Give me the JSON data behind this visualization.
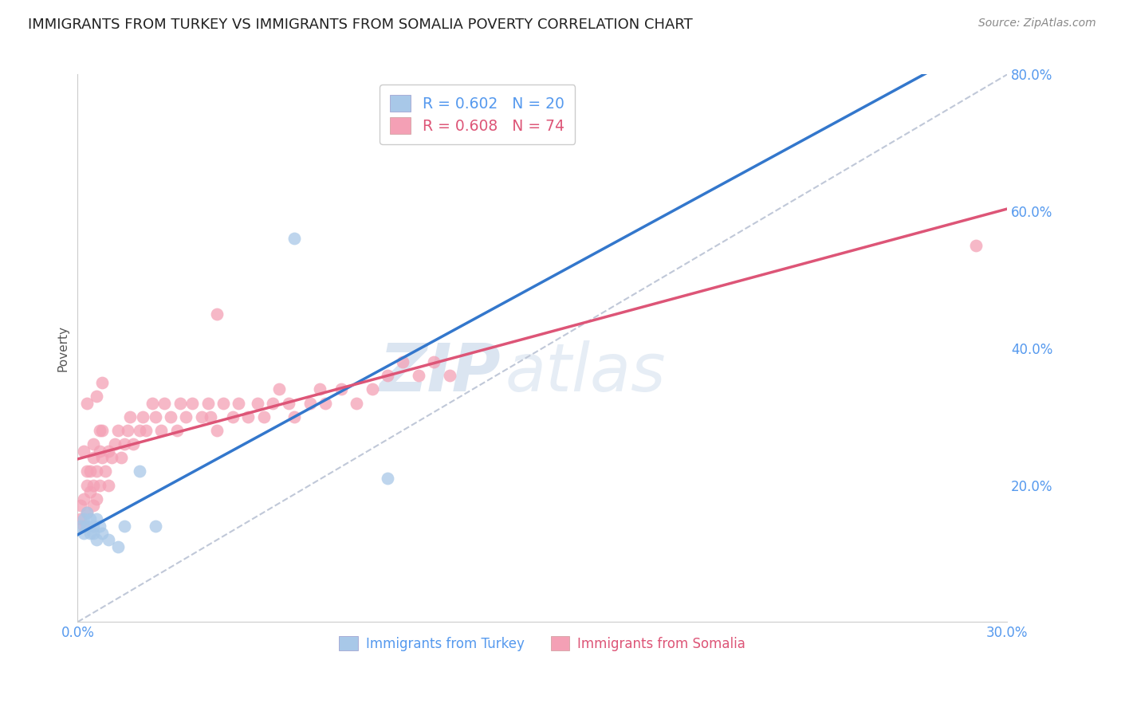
{
  "title": "IMMIGRANTS FROM TURKEY VS IMMIGRANTS FROM SOMALIA POVERTY CORRELATION CHART",
  "source": "Source: ZipAtlas.com",
  "ylabel": "Poverty",
  "watermark_zip": "ZIP",
  "watermark_atlas": "atlas",
  "turkey_color": "#a8c8e8",
  "turkey_edge": "#a8c8e8",
  "somalia_color": "#f4a0b5",
  "somalia_edge": "#f4a0b5",
  "turkey_line_color": "#3377cc",
  "somalia_line_color": "#dd5577",
  "diag_color": "#c0c8d8",
  "axis_color": "#5599ee",
  "title_color": "#222222",
  "source_color": "#888888",
  "ylabel_color": "#555555",
  "legend_r_turkey": "R = 0.602",
  "legend_n_turkey": "N = 20",
  "legend_r_somalia": "R = 0.608",
  "legend_n_somalia": "N = 74",
  "turkey_legend": "Immigrants from Turkey",
  "somalia_legend": "Immigrants from Somalia",
  "xlim": [
    0.0,
    0.3
  ],
  "ylim": [
    0.0,
    0.8
  ],
  "xtick_values": [
    0.0,
    0.05,
    0.1,
    0.15,
    0.2,
    0.25,
    0.3
  ],
  "xtick_labels": [
    "0.0%",
    "",
    "",
    "",
    "",
    "",
    "30.0%"
  ],
  "ytick_values": [
    0.2,
    0.4,
    0.6,
    0.8
  ],
  "ytick_labels": [
    "20.0%",
    "40.0%",
    "60.0%",
    "80.0%"
  ],
  "turkey_x": [
    0.001,
    0.002,
    0.002,
    0.003,
    0.003,
    0.004,
    0.004,
    0.005,
    0.005,
    0.006,
    0.006,
    0.007,
    0.008,
    0.01,
    0.013,
    0.015,
    0.02,
    0.025,
    0.07,
    0.1
  ],
  "turkey_y": [
    0.14,
    0.15,
    0.13,
    0.14,
    0.16,
    0.15,
    0.13,
    0.14,
    0.13,
    0.15,
    0.12,
    0.14,
    0.13,
    0.12,
    0.11,
    0.14,
    0.22,
    0.14,
    0.56,
    0.21
  ],
  "somalia_x": [
    0.001,
    0.001,
    0.002,
    0.002,
    0.003,
    0.003,
    0.003,
    0.004,
    0.004,
    0.005,
    0.005,
    0.005,
    0.006,
    0.006,
    0.007,
    0.007,
    0.008,
    0.008,
    0.009,
    0.01,
    0.01,
    0.011,
    0.012,
    0.013,
    0.014,
    0.015,
    0.016,
    0.017,
    0.018,
    0.02,
    0.021,
    0.022,
    0.024,
    0.025,
    0.027,
    0.028,
    0.03,
    0.032,
    0.033,
    0.035,
    0.037,
    0.04,
    0.042,
    0.043,
    0.045,
    0.047,
    0.05,
    0.052,
    0.055,
    0.058,
    0.06,
    0.063,
    0.065,
    0.068,
    0.07,
    0.075,
    0.078,
    0.08,
    0.085,
    0.09,
    0.095,
    0.1,
    0.105,
    0.11,
    0.115,
    0.12,
    0.002,
    0.003,
    0.005,
    0.006,
    0.007,
    0.008,
    0.29,
    0.045
  ],
  "somalia_y": [
    0.15,
    0.17,
    0.14,
    0.18,
    0.16,
    0.2,
    0.22,
    0.19,
    0.22,
    0.17,
    0.2,
    0.24,
    0.18,
    0.22,
    0.25,
    0.2,
    0.24,
    0.28,
    0.22,
    0.2,
    0.25,
    0.24,
    0.26,
    0.28,
    0.24,
    0.26,
    0.28,
    0.3,
    0.26,
    0.28,
    0.3,
    0.28,
    0.32,
    0.3,
    0.28,
    0.32,
    0.3,
    0.28,
    0.32,
    0.3,
    0.32,
    0.3,
    0.32,
    0.3,
    0.28,
    0.32,
    0.3,
    0.32,
    0.3,
    0.32,
    0.3,
    0.32,
    0.34,
    0.32,
    0.3,
    0.32,
    0.34,
    0.32,
    0.34,
    0.32,
    0.34,
    0.36,
    0.38,
    0.36,
    0.38,
    0.36,
    0.25,
    0.32,
    0.26,
    0.33,
    0.28,
    0.35,
    0.55,
    0.45
  ]
}
